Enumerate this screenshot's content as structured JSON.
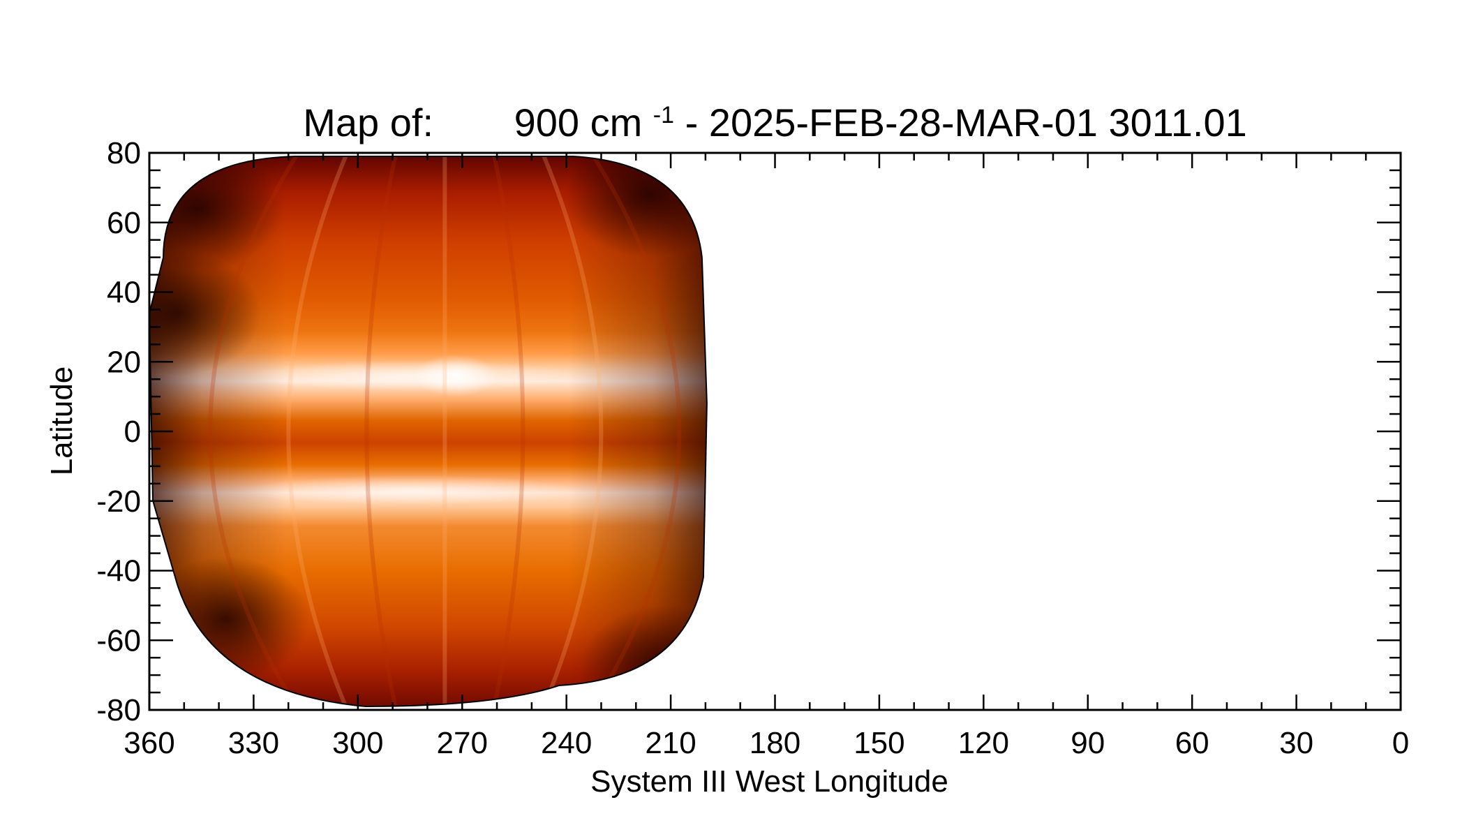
{
  "chart_data": {
    "type": "heatmap",
    "title": {
      "prefix": "Map of:",
      "wavenumber": "900 cm",
      "superscript": "-1",
      "suffix": " - 2025-FEB-28-MAR-01 3011.01"
    },
    "xlabel": "System III West Longitude",
    "ylabel": "Latitude",
    "xlim": [
      360,
      0
    ],
    "ylim": [
      -80,
      80
    ],
    "x_ticks": [
      360,
      330,
      300,
      270,
      240,
      210,
      180,
      150,
      120,
      90,
      60,
      30,
      0
    ],
    "y_ticks": [
      80,
      60,
      40,
      20,
      0,
      -20,
      -40,
      -60,
      -80
    ],
    "x_minor_step": 10,
    "y_minor_step": 5,
    "grid": false,
    "colormap": "red-temperature",
    "colors": {
      "dark": "#2b0000",
      "deep_red": "#8b0f00",
      "red": "#c42800",
      "orange": "#ef6c00",
      "light_orange": "#ff9a3a",
      "pale": "#ffd9b3",
      "white": "#fff8f2"
    },
    "data_coverage": {
      "lon_range": [
        360,
        200
      ],
      "lat_range": [
        -80,
        80
      ],
      "warm_bands": [
        {
          "lat": 16,
          "label": "northern warm band"
        },
        {
          "lat": -17,
          "label": "southern warm band"
        }
      ],
      "hot_spot": {
        "lon": 272,
        "lat": 16
      }
    }
  }
}
